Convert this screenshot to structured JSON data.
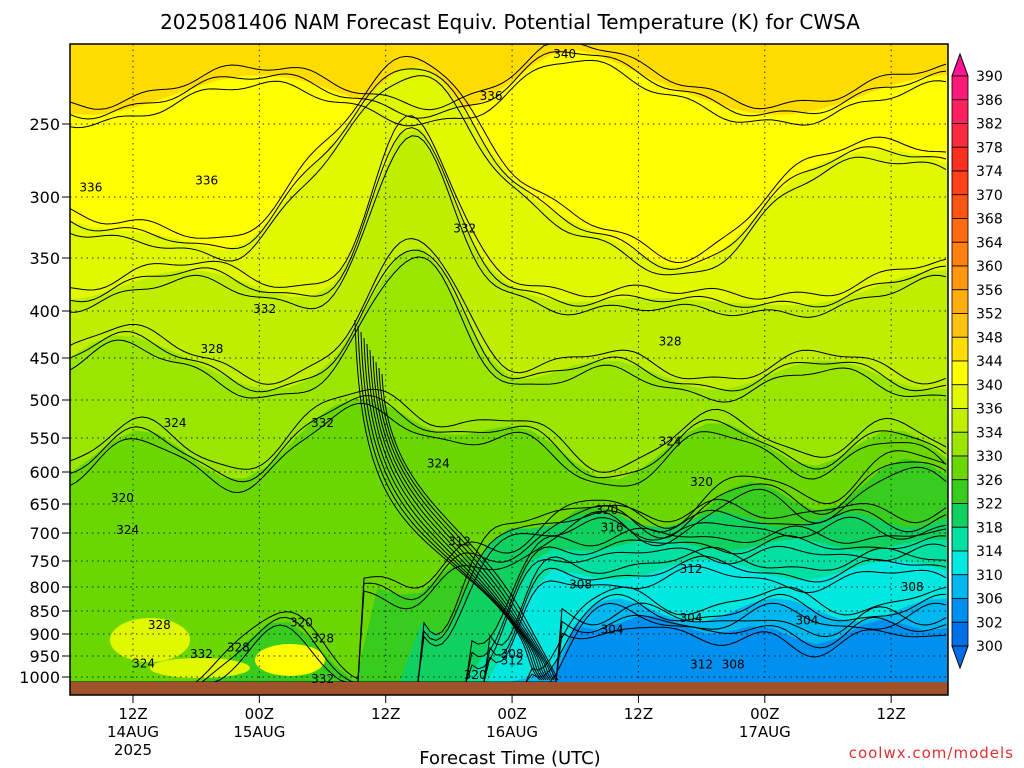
{
  "chart_data": {
    "type": "heatmap",
    "title": "2025081406 NAM Forecast Equiv. Potential Temperature (K) for CWSA",
    "xlabel": "Forecast Time (UTC)",
    "ylabel": "",
    "y_scale": "pressure (log)",
    "y_ticks": [
      250,
      300,
      350,
      400,
      450,
      500,
      550,
      600,
      650,
      700,
      750,
      800,
      850,
      900,
      950,
      1000
    ],
    "y_range": [
      200,
      1025
    ],
    "x_range_hours": [
      0,
      84
    ],
    "x_ticks": [
      {
        "hour": 6,
        "time": "12Z",
        "date": "14AUG",
        "year": "2025"
      },
      {
        "hour": 18,
        "time": "00Z",
        "date": "15AUG",
        "year": ""
      },
      {
        "hour": 30,
        "time": "12Z",
        "date": "",
        "year": ""
      },
      {
        "hour": 42,
        "time": "00Z",
        "date": "16AUG",
        "year": ""
      },
      {
        "hour": 54,
        "time": "12Z",
        "date": "",
        "year": ""
      },
      {
        "hour": 66,
        "time": "00Z",
        "date": "17AUG",
        "year": ""
      },
      {
        "hour": 78,
        "time": "12Z",
        "date": "",
        "year": ""
      }
    ],
    "grid": true,
    "ground_color": "#a0522d",
    "colorbar": {
      "position": "right",
      "levels": [
        {
          "value": "390",
          "color": "#ff1493"
        },
        {
          "value": "386",
          "color": "#ff1a7a"
        },
        {
          "value": "382",
          "color": "#ff2060"
        },
        {
          "value": "378",
          "color": "#ff2a40"
        },
        {
          "value": "374",
          "color": "#ff3020"
        },
        {
          "value": "370",
          "color": "#ff4018"
        },
        {
          "value": "368",
          "color": "#ff5514"
        },
        {
          "value": "364",
          "color": "#ff6a10"
        },
        {
          "value": "360",
          "color": "#ff8010"
        },
        {
          "value": "356",
          "color": "#ff9810"
        },
        {
          "value": "352",
          "color": "#ffae10"
        },
        {
          "value": "348",
          "color": "#ffc410"
        },
        {
          "value": "344",
          "color": "#ffdc00"
        },
        {
          "value": "340",
          "color": "#ffff00"
        },
        {
          "value": "336",
          "color": "#e0f800"
        },
        {
          "value": "334",
          "color": "#c0ee00"
        },
        {
          "value": "330",
          "color": "#9be600"
        },
        {
          "value": "326",
          "color": "#6ad800"
        },
        {
          "value": "322",
          "color": "#38cc1e"
        },
        {
          "value": "318",
          "color": "#10d060"
        },
        {
          "value": "314",
          "color": "#00e0a0"
        },
        {
          "value": "310",
          "color": "#00e8e0"
        },
        {
          "value": "306",
          "color": "#00b8f0"
        },
        {
          "value": "302",
          "color": "#0090f0"
        },
        {
          "value": "300",
          "color": "#0070e8"
        }
      ]
    },
    "contour_labels": [
      {
        "text": "340",
        "hour": 47,
        "p": 210
      },
      {
        "text": "336",
        "hour": 40,
        "p": 233
      },
      {
        "text": "336",
        "hour": 2,
        "p": 293
      },
      {
        "text": "336",
        "hour": 13,
        "p": 288
      },
      {
        "text": "332",
        "hour": 37.5,
        "p": 325
      },
      {
        "text": "332",
        "hour": 18.5,
        "p": 398
      },
      {
        "text": "332",
        "hour": 24,
        "p": 530
      },
      {
        "text": "328",
        "hour": 13.5,
        "p": 440
      },
      {
        "text": "328",
        "hour": 57,
        "p": 432
      },
      {
        "text": "324",
        "hour": 10,
        "p": 530
      },
      {
        "text": "324",
        "hour": 35,
        "p": 587
      },
      {
        "text": "324",
        "hour": 57,
        "p": 555
      },
      {
        "text": "320",
        "hour": 5,
        "p": 640
      },
      {
        "text": "320",
        "hour": 60,
        "p": 615
      },
      {
        "text": "320",
        "hour": 51,
        "p": 660
      },
      {
        "text": "320",
        "hour": 22,
        "p": 875
      },
      {
        "text": "320",
        "hour": 38.5,
        "p": 995
      },
      {
        "text": "324",
        "hour": 5.5,
        "p": 695
      },
      {
        "text": "324",
        "hour": 7,
        "p": 968
      },
      {
        "text": "328",
        "hour": 8.5,
        "p": 880
      },
      {
        "text": "328",
        "hour": 16,
        "p": 930
      },
      {
        "text": "328",
        "hour": 24,
        "p": 910
      },
      {
        "text": "332",
        "hour": 12.5,
        "p": 945
      },
      {
        "text": "332",
        "hour": 24,
        "p": 1005
      },
      {
        "text": "316",
        "hour": 51.5,
        "p": 690
      },
      {
        "text": "312",
        "hour": 37,
        "p": 715
      },
      {
        "text": "312",
        "hour": 59,
        "p": 765
      },
      {
        "text": "312",
        "hour": 42,
        "p": 960
      },
      {
        "text": "312",
        "hour": 60,
        "p": 970
      },
      {
        "text": "308",
        "hour": 48.5,
        "p": 795
      },
      {
        "text": "308",
        "hour": 80,
        "p": 800
      },
      {
        "text": "308",
        "hour": 42,
        "p": 945
      },
      {
        "text": "308",
        "hour": 63,
        "p": 970
      },
      {
        "text": "304",
        "hour": 51.5,
        "p": 890
      },
      {
        "text": "304",
        "hour": 59,
        "p": 865
      },
      {
        "text": "304",
        "hour": 70,
        "p": 870
      }
    ]
  },
  "credit": "coolwx.com/models"
}
